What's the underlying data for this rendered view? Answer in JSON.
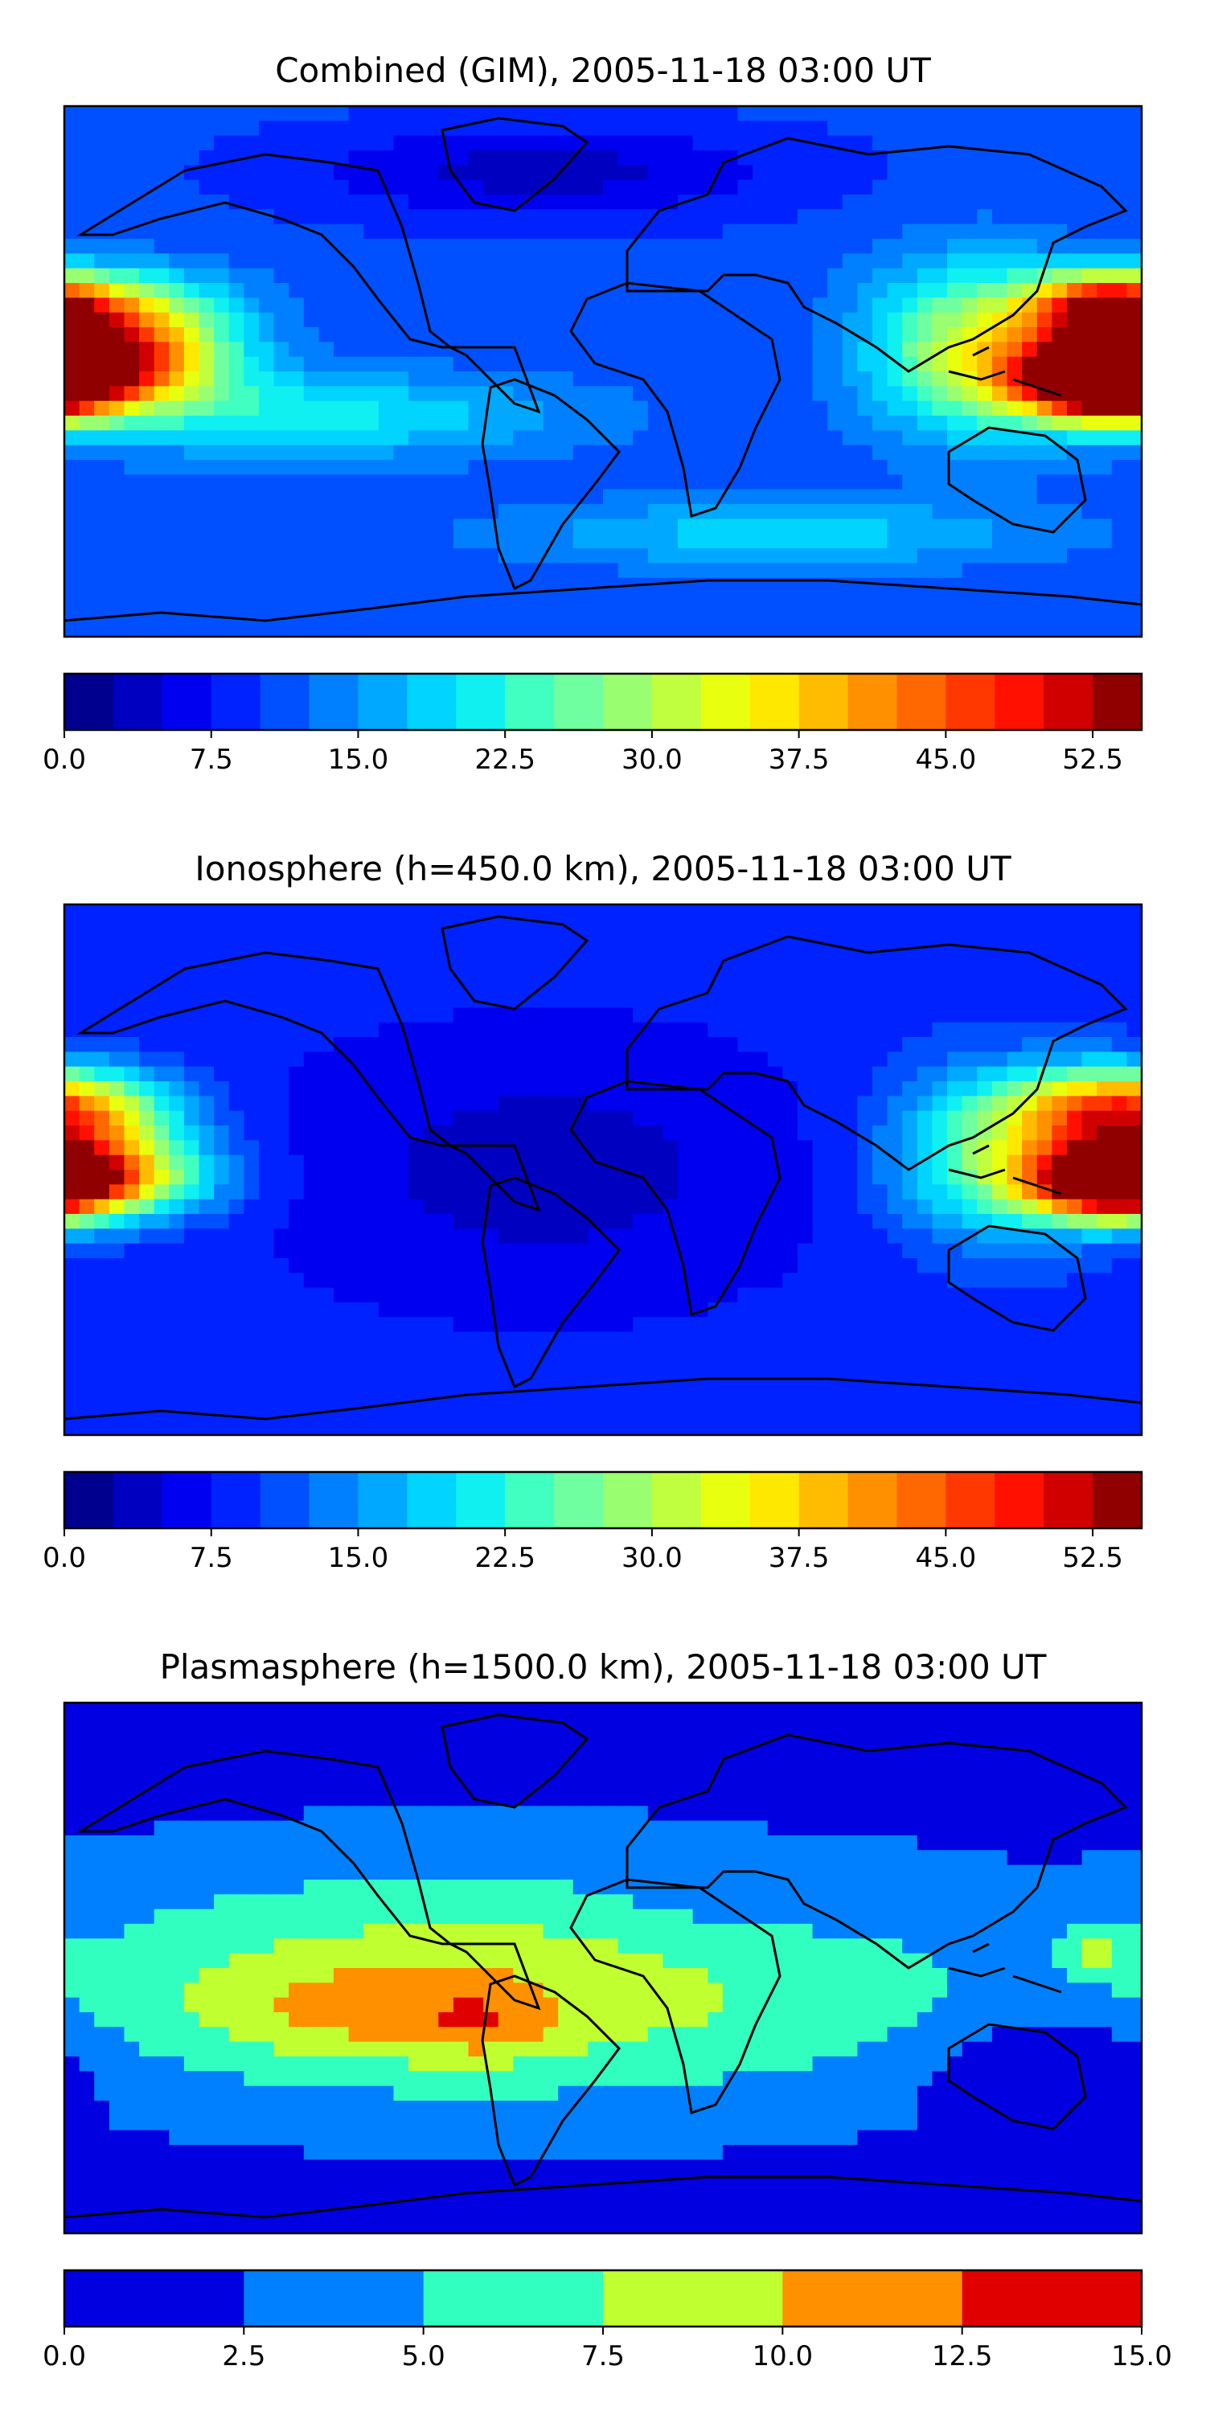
{
  "panels": [
    {
      "id": "combined",
      "title": "Combined (GIM), 2005-11-18 03:00 UT",
      "colorbar": {
        "min": 0,
        "max": 55,
        "levels": 22,
        "tick_labels": [
          "0.0",
          "7.5",
          "15.0",
          "22.5",
          "30.0",
          "37.5",
          "45.0",
          "52.5"
        ],
        "tick_values": [
          0,
          7.5,
          15,
          22.5,
          30,
          37.5,
          45,
          52.5
        ]
      },
      "field": {
        "base": 11,
        "blobs": [
          {
            "lon": -175,
            "lat": 2,
            "sx": 30,
            "sy": 10,
            "amp": 44
          },
          {
            "lon": -160,
            "lat": 20,
            "sx": 25,
            "sy": 10,
            "amp": 20
          },
          {
            "lon": 168,
            "lat": -5,
            "sx": 18,
            "sy": 8,
            "amp": 42
          },
          {
            "lon": 168,
            "lat": 22,
            "sx": 18,
            "sy": 8,
            "amp": 34
          },
          {
            "lon": 125,
            "lat": 8,
            "sx": 25,
            "sy": 20,
            "amp": 20
          },
          {
            "lon": -100,
            "lat": -15,
            "sx": 60,
            "sy": 10,
            "amp": 10
          },
          {
            "lon": 60,
            "lat": -55,
            "sx": 60,
            "sy": 8,
            "amp": 8
          },
          {
            "lon": -20,
            "lat": 68,
            "sx": 60,
            "sy": 12,
            "amp": -7
          }
        ]
      }
    },
    {
      "id": "ionosphere",
      "title": "Ionosphere  (h=450.0 km), 2005-11-18 03:00 UT",
      "colorbar": {
        "min": 0,
        "max": 55,
        "levels": 22,
        "tick_labels": [
          "0.0",
          "7.5",
          "15.0",
          "22.5",
          "30.0",
          "37.5",
          "45.0",
          "52.5"
        ],
        "tick_values": [
          0,
          7.5,
          15,
          22.5,
          30,
          37.5,
          45,
          52.5
        ]
      },
      "field": {
        "base": 9,
        "blobs": [
          {
            "lon": -175,
            "lat": -2,
            "sx": 28,
            "sy": 10,
            "amp": 36
          },
          {
            "lon": -170,
            "lat": 20,
            "sx": 22,
            "sy": 10,
            "amp": 18
          },
          {
            "lon": 170,
            "lat": -5,
            "sx": 18,
            "sy": 8,
            "amp": 34
          },
          {
            "lon": 165,
            "lat": 20,
            "sx": 22,
            "sy": 10,
            "amp": 24
          },
          {
            "lon": 130,
            "lat": 5,
            "sx": 25,
            "sy": 20,
            "amp": 16
          },
          {
            "lon": -20,
            "lat": 0,
            "sx": 70,
            "sy": 35,
            "amp": -5
          }
        ]
      }
    },
    {
      "id": "plasmasphere",
      "title": "Plasmasphere (h=1500.0 km), 2005-11-18 03:00 UT",
      "colorbar": {
        "min": 0,
        "max": 15,
        "levels": 6,
        "tick_labels": [
          "0.0",
          "2.5",
          "5.0",
          "7.5",
          "10.0",
          "12.5",
          "15.0"
        ],
        "tick_values": [
          0,
          2.5,
          5,
          7.5,
          10,
          12.5,
          15
        ]
      },
      "field": {
        "base": 1.5,
        "blobs": [
          {
            "lon": -30,
            "lat": -5,
            "sx": 120,
            "sy": 30,
            "amp": 7.5
          },
          {
            "lon": -80,
            "lat": -15,
            "sx": 40,
            "sy": 12,
            "amp": 3.5
          },
          {
            "lon": -40,
            "lat": -20,
            "sx": 15,
            "sy": 8,
            "amp": 2.5
          },
          {
            "lon": 165,
            "lat": 5,
            "sx": 10,
            "sy": 6,
            "amp": 4.0
          },
          {
            "lon": 40,
            "lat": 20,
            "sx": 40,
            "sy": 15,
            "amp": -1.5
          },
          {
            "lon": 150,
            "lat": -35,
            "sx": 25,
            "sy": 10,
            "amp": -4.5
          }
        ]
      }
    }
  ],
  "colors": {
    "jet22": [
      "#00008f",
      "#0000c0",
      "#0000f0",
      "#0022ff",
      "#0050ff",
      "#0080ff",
      "#00a8ff",
      "#00d4ff",
      "#10f0f0",
      "#40ffc0",
      "#70ffa0",
      "#9aff70",
      "#c0ff40",
      "#e8ff10",
      "#ffe800",
      "#ffbc00",
      "#ff9000",
      "#ff6800",
      "#ff3800",
      "#ff1000",
      "#d00000",
      "#900000"
    ],
    "jet6": [
      "#0000e0",
      "#0080ff",
      "#30ffc0",
      "#c0ff30",
      "#ff9000",
      "#e00000"
    ],
    "coastline": "#000000"
  }
}
